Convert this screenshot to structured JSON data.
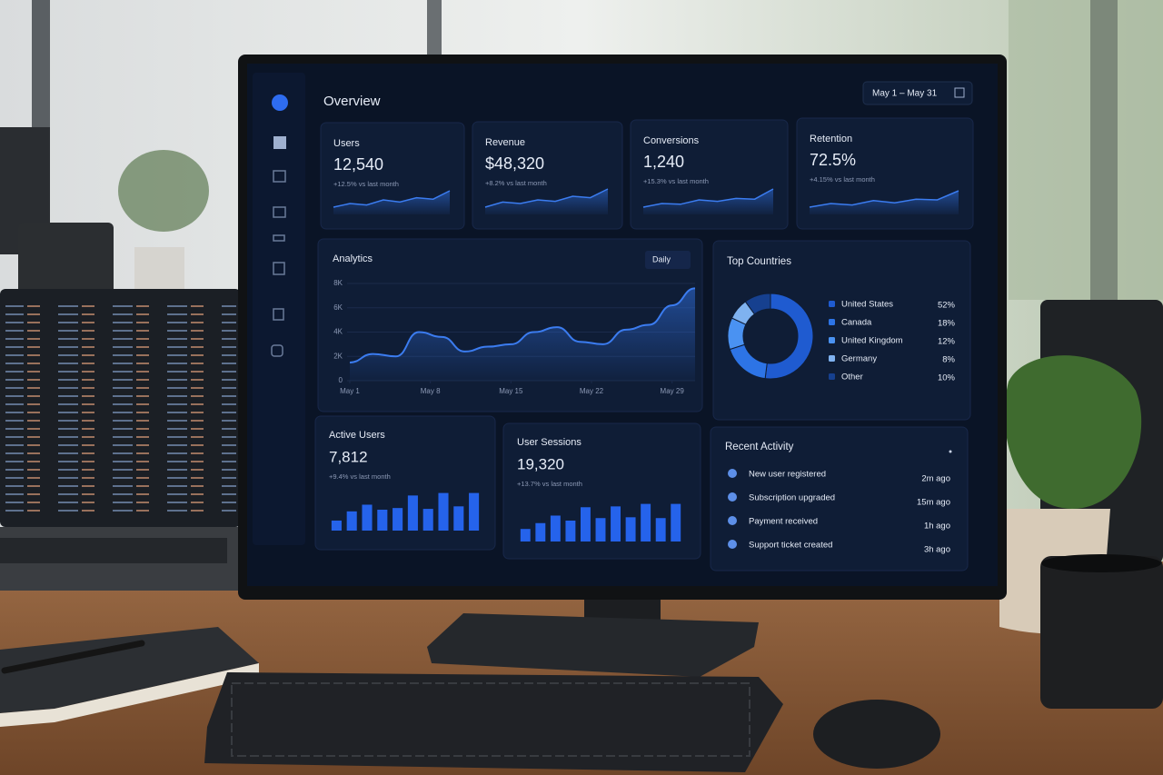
{
  "header": {
    "title": "Overview",
    "date_range": "May 1 – May 31"
  },
  "kpis": [
    {
      "label": "Users",
      "value": "12,540",
      "change": "+12.5% vs last month",
      "trend": [
        2,
        3,
        2.6,
        4,
        3.4,
        4.6,
        4.2,
        6.5
      ]
    },
    {
      "label": "Revenue",
      "value": "$48,320",
      "change": "+8.2% vs last month",
      "trend": [
        2,
        3.4,
        3,
        4,
        3.6,
        5,
        4.6,
        7
      ]
    },
    {
      "label": "Conversions",
      "value": "1,240",
      "change": "+15.3% vs last month",
      "trend": [
        2,
        3,
        2.8,
        4,
        3.6,
        4.4,
        4.2,
        7
      ]
    },
    {
      "label": "Retention",
      "value": "72.5%",
      "change": "+4.15% vs last month",
      "trend": [
        2,
        3,
        2.6,
        3.8,
        3.2,
        4.2,
        4,
        6.5
      ]
    }
  ],
  "analytics": {
    "type": "area",
    "title": "Analytics",
    "period": "Daily",
    "x": [
      1,
      3,
      5,
      7,
      9,
      11,
      13,
      15,
      17,
      19,
      21,
      23,
      25,
      27,
      29,
      31
    ],
    "values": [
      1500,
      2200,
      2000,
      4000,
      3600,
      2400,
      2800,
      3000,
      4000,
      4400,
      3200,
      3000,
      4200,
      4600,
      6200,
      7600
    ],
    "xlim": [
      1,
      31
    ],
    "xticks": [
      {
        "value": 1,
        "label": "May 1"
      },
      {
        "value": 8,
        "label": "May 8"
      },
      {
        "value": 15,
        "label": "May 15"
      },
      {
        "value": 22,
        "label": "May 22"
      },
      {
        "value": 29,
        "label": "May 29"
      }
    ],
    "ylim": [
      0,
      8000
    ],
    "yticks": [
      0,
      {
        "value": 2000,
        "label": "2K"
      },
      {
        "value": 4000,
        "label": "4K"
      },
      {
        "value": 6000,
        "label": "6K"
      },
      {
        "value": 8000,
        "label": "8K"
      }
    ],
    "color": "#3b7cf0"
  },
  "countries": {
    "type": "pie",
    "title": "Top Countries",
    "categories": [
      "United States",
      "Canada",
      "United Kingdom",
      "Germany",
      "Other"
    ],
    "values": [
      52,
      18,
      12,
      8,
      10
    ],
    "value_labels": [
      "52%",
      "18%",
      "12%",
      "8%",
      "10%"
    ],
    "colors": [
      "#1f5bd0",
      "#2d74e6",
      "#4a92f2",
      "#7fb2f0",
      "#16408f"
    ]
  },
  "active_users": {
    "type": "bar",
    "title": "Active Users",
    "value": "7,812",
    "change": "+9.4% vs last month",
    "values": [
      2.4,
      4.6,
      6.2,
      5,
      5.4,
      8.4,
      5.2,
      9,
      5.8,
      9
    ],
    "color": "#2563eb"
  },
  "user_sessions": {
    "type": "bar",
    "title": "User Sessions",
    "value": "19,320",
    "change": "+13.7% vs last month",
    "values": [
      3,
      4.4,
      6.2,
      5,
      8.2,
      5.6,
      8.4,
      5.8,
      9,
      5.6,
      9
    ],
    "color": "#2563eb"
  },
  "recent_activity": {
    "title": "Recent Activity",
    "items": [
      {
        "text": "New user registered",
        "time": "2m ago"
      },
      {
        "text": "Subscription upgraded",
        "time": "15m ago"
      },
      {
        "text": "Payment received",
        "time": "1h ago"
      },
      {
        "text": "Support ticket created",
        "time": "3h ago"
      }
    ]
  }
}
